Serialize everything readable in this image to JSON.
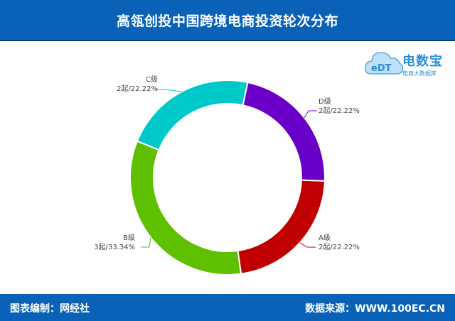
{
  "header": {
    "title": "高瓴创投中国跨境电商投资轮次分布"
  },
  "footer": {
    "left": "图表编制：网经社",
    "right": "数据来源：WWW.100EC.CN"
  },
  "logo": {
    "mark": "eDT",
    "brand": "电数宝",
    "sub": "电商大数据库"
  },
  "chart_data": {
    "type": "pie",
    "donut": true,
    "slices": [
      {
        "name": "A级",
        "count_label": "2起",
        "value": 22.22,
        "label": "2起/22.22%",
        "color": "#c00000"
      },
      {
        "name": "B级",
        "count_label": "3起",
        "value": 33.34,
        "label": "3起/33.34%",
        "color": "#5ec000"
      },
      {
        "name": "C级",
        "count_label": "2起",
        "value": 22.22,
        "label": "2起/22.22%",
        "color": "#00c8c8"
      },
      {
        "name": "D级",
        "count_label": "2起",
        "value": 22.22,
        "label": "2起/22.22%",
        "color": "#6a00c8"
      }
    ]
  }
}
